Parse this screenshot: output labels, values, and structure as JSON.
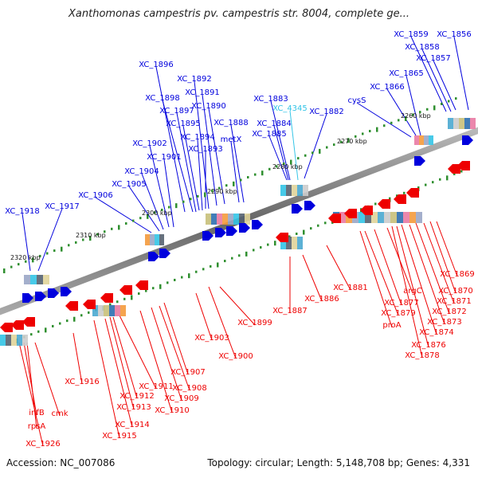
{
  "title": "Xanthomonas campestris pv. campestris str. 8004, complete ge...",
  "footer": {
    "accession": "Accession: NC_007086",
    "topology": "Topology: circular; Length: 5,148,708 bp; Genes: 4,331"
  },
  "colors": {
    "forward": "#0000dd",
    "reverse": "#ee0000",
    "highlight": "#33c4e6",
    "backbone": "#777777",
    "tick": "#2f8f2f"
  },
  "kbp_ticks": [
    "2320 kbp",
    "2310 kbp",
    "2300 kbp",
    "2290 kbp",
    "2280 kbp",
    "2270 kbp",
    "2260 kbp"
  ],
  "top_labels": [
    "XC_1918",
    "XC_1917",
    "XC_1906",
    "XC_1905",
    "XC_1904",
    "XC_1901",
    "XC_1902",
    "XC_1893",
    "XC_1894",
    "XC_1895",
    "XC_1897",
    "XC_1898",
    "XC_1896",
    "XC_1892",
    "XC_1891",
    "XC_1890",
    "XC_1888",
    "metX",
    "XC_1885",
    "XC_1884",
    "XC_1883",
    "XC_4345",
    "XC_1882",
    "cysS",
    "XC_1866",
    "XC_1865",
    "XC_1857",
    "XC_1858",
    "XC_1859",
    "XC_1856"
  ],
  "bottom_labels": [
    "infB",
    "rpsA",
    "XC_1926",
    "cmk",
    "XC_1916",
    "XC_1915",
    "XC_1914",
    "XC_1913",
    "XC_1912",
    "XC_1911",
    "XC_1910",
    "XC_1909",
    "XC_1908",
    "XC_1907",
    "XC_1903",
    "XC_1900",
    "XC_1899",
    "XC_1887",
    "XC_1886",
    "XC_1881",
    "proA",
    "XC_1879",
    "XC_1877",
    "argC",
    "XC_1878",
    "XC_1876",
    "XC_1874",
    "XC_1873",
    "XC_1872",
    "XC_1871",
    "XC_1870",
    "XC_1869"
  ]
}
